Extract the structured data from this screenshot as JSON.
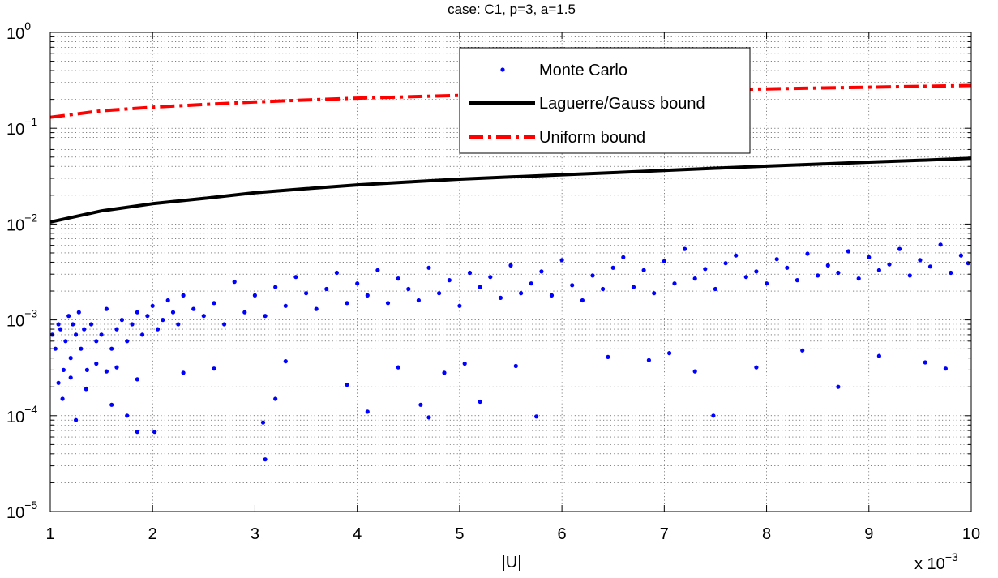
{
  "chart_data": {
    "type": "scatter",
    "title": "case: C1, p=3, a=1.5",
    "xlabel": "|U|",
    "x_multiplier_label": "x 10",
    "x_multiplier_exponent": "−3",
    "xlim": [
      1,
      10
    ],
    "ylim": [
      1e-05,
      1
    ],
    "y_scale": "log",
    "grid": true,
    "legend_position": "top-center",
    "x_ticks": [
      "1",
      "2",
      "3",
      "4",
      "5",
      "6",
      "7",
      "8",
      "9",
      "10"
    ],
    "y_ticks": [
      {
        "value": 1e-05,
        "base": "10",
        "exp": "−5"
      },
      {
        "value": 0.0001,
        "base": "10",
        "exp": "−4"
      },
      {
        "value": 0.001,
        "base": "10",
        "exp": "−3"
      },
      {
        "value": 0.01,
        "base": "10",
        "exp": "−2"
      },
      {
        "value": 0.1,
        "base": "10",
        "exp": "−1"
      },
      {
        "value": 1,
        "base": "10",
        "exp": "0"
      }
    ],
    "series": [
      {
        "name": "Monte Carlo",
        "style": "points",
        "color": "#0000ff",
        "x": [
          1.02,
          1.05,
          1.08,
          1.1,
          1.13,
          1.15,
          1.18,
          1.2,
          1.22,
          1.25,
          1.28,
          1.3,
          1.33,
          1.36,
          1.4,
          1.45,
          1.5,
          1.55,
          1.6,
          1.65,
          1.7,
          1.75,
          1.8,
          1.85,
          1.9,
          1.95,
          2.0,
          2.05,
          2.1,
          2.15,
          2.2,
          2.25,
          2.3,
          2.4,
          2.5,
          2.6,
          2.7,
          2.8,
          2.9,
          3.0,
          3.1,
          3.2,
          3.3,
          3.4,
          3.5,
          3.6,
          3.7,
          3.8,
          3.9,
          4.0,
          4.1,
          4.2,
          4.3,
          4.4,
          4.5,
          4.6,
          4.7,
          4.8,
          4.9,
          5.0,
          5.1,
          5.2,
          5.3,
          5.4,
          5.5,
          5.6,
          5.7,
          5.8,
          5.9,
          6.0,
          6.1,
          6.2,
          6.3,
          6.4,
          6.5,
          6.6,
          6.7,
          6.8,
          6.9,
          7.0,
          7.1,
          7.2,
          7.3,
          7.4,
          7.5,
          7.6,
          7.7,
          7.8,
          7.9,
          8.0,
          8.1,
          8.2,
          8.3,
          8.4,
          8.5,
          8.6,
          8.7,
          8.8,
          8.9,
          9.0,
          9.1,
          9.2,
          9.3,
          9.4,
          9.5,
          9.6,
          9.7,
          9.8,
          9.9,
          9.97,
          1.12,
          1.25,
          1.6,
          1.75,
          1.85,
          2.02,
          3.08,
          3.1,
          3.2,
          4.1,
          4.62,
          4.7,
          5.2,
          5.75,
          7.48,
          8.7,
          1.08,
          1.2,
          1.35,
          1.45,
          1.55,
          1.65,
          1.85,
          2.3,
          2.6,
          3.3,
          3.9,
          4.4,
          4.85,
          5.05,
          5.55,
          6.45,
          6.85,
          7.05,
          7.3,
          7.9,
          8.35,
          9.1,
          9.55,
          9.75
        ],
        "y": [
          0.0007,
          0.0005,
          0.0009,
          0.0008,
          0.0003,
          0.0006,
          0.0011,
          0.0004,
          0.0009,
          0.0007,
          0.0012,
          0.0005,
          0.0008,
          0.0003,
          0.0009,
          0.0006,
          0.0007,
          0.0013,
          0.0005,
          0.0008,
          0.001,
          0.0006,
          0.0009,
          0.0012,
          0.0007,
          0.0011,
          0.0014,
          0.0008,
          0.001,
          0.0016,
          0.0012,
          0.0009,
          0.0018,
          0.0013,
          0.0011,
          0.0015,
          0.0009,
          0.0025,
          0.0012,
          0.0018,
          0.0011,
          0.0022,
          0.0014,
          0.0028,
          0.0019,
          0.0013,
          0.0021,
          0.0031,
          0.0015,
          0.0024,
          0.0018,
          0.0033,
          0.0015,
          0.0027,
          0.0021,
          0.0016,
          0.0035,
          0.0019,
          0.0026,
          0.0014,
          0.0031,
          0.0022,
          0.0028,
          0.0017,
          0.0037,
          0.0019,
          0.0024,
          0.0032,
          0.0018,
          0.0042,
          0.0023,
          0.0016,
          0.0029,
          0.0021,
          0.0035,
          0.0045,
          0.0022,
          0.0033,
          0.0019,
          0.0041,
          0.0024,
          0.0055,
          0.0027,
          0.0034,
          0.0021,
          0.0039,
          0.0047,
          0.0028,
          0.0032,
          0.0024,
          0.0043,
          0.0035,
          0.0026,
          0.0049,
          0.0029,
          0.0037,
          0.0031,
          0.0052,
          0.0027,
          0.0045,
          0.0033,
          0.0038,
          0.0055,
          0.0029,
          0.0042,
          0.0036,
          0.0061,
          0.0031,
          0.0047,
          0.0039,
          0.00015,
          9e-05,
          0.00013,
          0.0001,
          6.8e-05,
          6.8e-05,
          8.5e-05,
          3.5e-05,
          0.00015,
          0.00011,
          0.00013,
          9.6e-05,
          0.00014,
          9.8e-05,
          0.0001,
          0.0002,
          0.00022,
          0.00025,
          0.00019,
          0.00035,
          0.00029,
          0.00032,
          0.00024,
          0.00028,
          0.00031,
          0.00037,
          0.00021,
          0.00032,
          0.00028,
          0.00035,
          0.00033,
          0.00041,
          0.00038,
          0.00045,
          0.00029,
          0.00032,
          0.00048,
          0.00042,
          0.00036,
          0.00031
        ]
      },
      {
        "name": "Laguerre/Gauss bound",
        "style": "solid",
        "color": "#000000",
        "x": [
          1,
          1.5,
          2,
          2.5,
          3,
          3.5,
          4,
          4.5,
          5,
          5.5,
          6,
          6.5,
          7,
          7.5,
          8,
          8.5,
          9,
          9.5,
          10
        ],
        "y": [
          0.0105,
          0.0137,
          0.0163,
          0.0185,
          0.0212,
          0.0234,
          0.0256,
          0.0275,
          0.0294,
          0.031,
          0.0327,
          0.0344,
          0.0363,
          0.0383,
          0.0403,
          0.0422,
          0.0443,
          0.0462,
          0.0485
        ]
      },
      {
        "name": "Uniform bound",
        "style": "dash-dot",
        "color": "#ff0000",
        "x": [
          1,
          1.5,
          2,
          2.5,
          3,
          3.5,
          4,
          4.5,
          5,
          5.5,
          6,
          6.5,
          7,
          7.5,
          8,
          8.5,
          9,
          9.5,
          10
        ],
        "y": [
          0.13,
          0.152,
          0.166,
          0.177,
          0.188,
          0.197,
          0.206,
          0.213,
          0.22,
          0.227,
          0.233,
          0.239,
          0.245,
          0.251,
          0.257,
          0.263,
          0.268,
          0.273,
          0.279
        ]
      }
    ]
  }
}
